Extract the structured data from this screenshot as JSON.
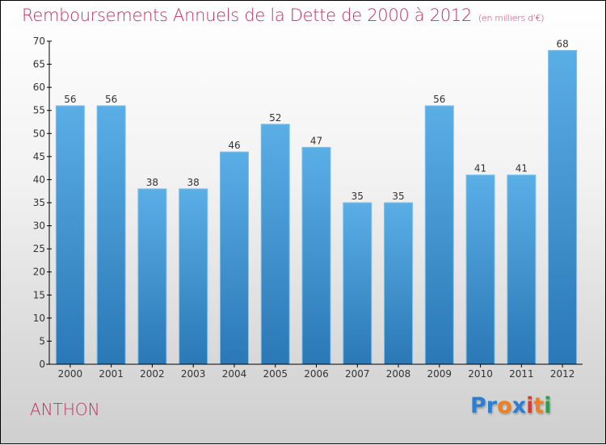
{
  "header": {
    "title": "Remboursements Annuels de la Dette de 2000 à 2012",
    "unit": "(en milliers d'€)"
  },
  "footer": {
    "commune": "ANTHON",
    "logo": {
      "letters": [
        {
          "char": "P",
          "color": "#2a7fd4"
        },
        {
          "char": "r",
          "color": "#2a7fd4"
        },
        {
          "char": "o",
          "color": "#f0801e"
        },
        {
          "char": "x",
          "color": "#2a7fd4"
        },
        {
          "char": "i",
          "color": "#e03a2a"
        },
        {
          "char": "t",
          "color": "#f0801e"
        },
        {
          "char": "i",
          "color": "#2aa048"
        }
      ]
    }
  },
  "colors": {
    "title": "#c0305f",
    "bar_top": "#5aaee6",
    "bar_bottom": "#2a78b6",
    "bar_edge": "#7cc0ee"
  },
  "chart_data": {
    "type": "bar",
    "title": "Remboursements Annuels de la Dette de 2000 à 2012",
    "subtitle": "(en milliers d'€)",
    "xlabel": "",
    "ylabel": "",
    "categories": [
      "2000",
      "2001",
      "2002",
      "2003",
      "2004",
      "2005",
      "2006",
      "2007",
      "2008",
      "2009",
      "2010",
      "2011",
      "2012"
    ],
    "values": [
      56,
      56,
      38,
      38,
      46,
      52,
      47,
      35,
      35,
      56,
      41,
      41,
      68
    ],
    "ylim": [
      0,
      70
    ],
    "yticks": [
      0,
      5,
      10,
      15,
      20,
      25,
      30,
      35,
      40,
      45,
      50,
      55,
      60,
      65,
      70
    ],
    "grid": false,
    "legend": "none",
    "data_labels": true
  }
}
